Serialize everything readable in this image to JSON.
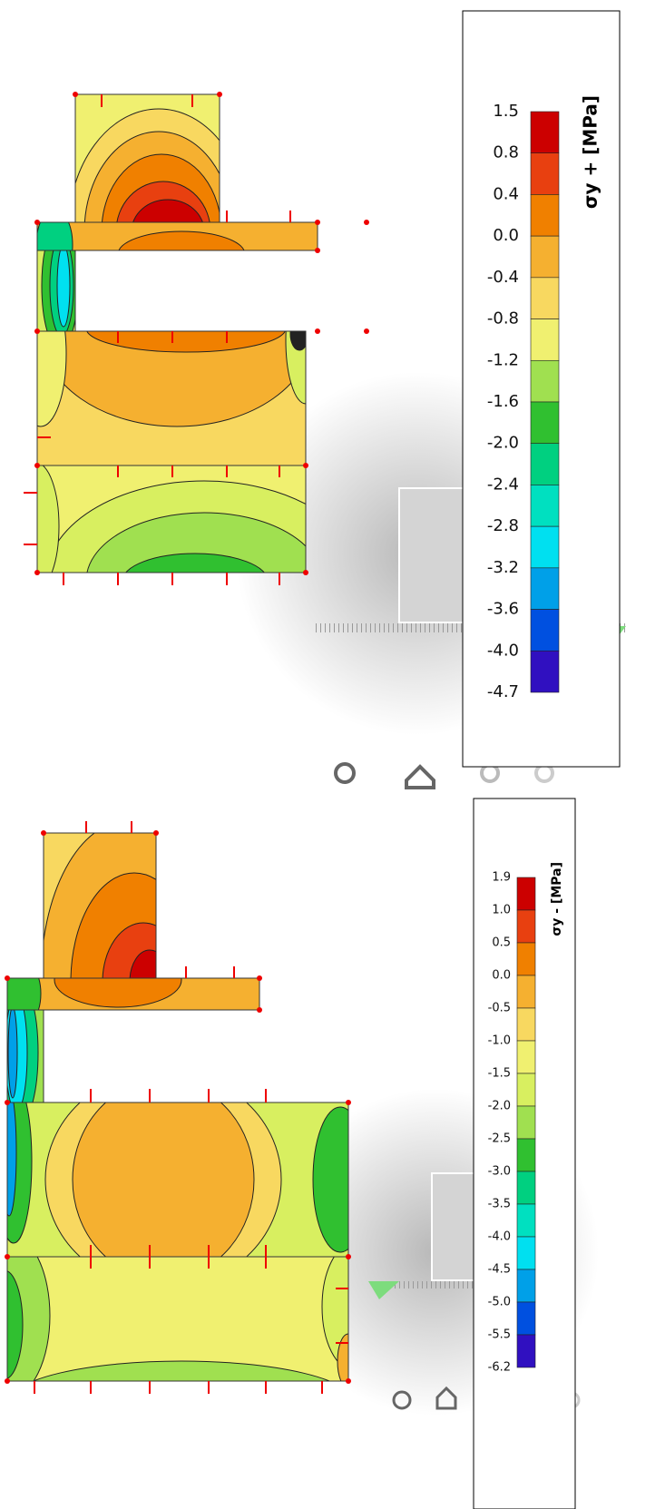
{
  "panels": [
    {
      "legend": {
        "title": "σy + [MPa]",
        "labels": [
          "1.5",
          "0.8",
          "0.4",
          "0.0",
          "-0.4",
          "-0.8",
          "-1.2",
          "-1.6",
          "-2.0",
          "-2.4",
          "-2.8",
          "-3.2",
          "-3.6",
          "-4.0",
          "-4.7"
        ],
        "colors": [
          "#cc0000",
          "#e84010",
          "#f08000",
          "#f5b030",
          "#f8d860",
          "#f0f070",
          "#a0e050",
          "#30c030",
          "#00d080",
          "#00e0c0",
          "#00e0f0",
          "#00a0e8",
          "#0050e0",
          "#3010c0"
        ]
      }
    },
    {
      "legend": {
        "title": "σy - [MPa]",
        "labels": [
          "1.9",
          "1.0",
          "0.5",
          "0.0",
          "-0.5",
          "-1.0",
          "-1.5",
          "-2.0",
          "-2.5",
          "-3.0",
          "-3.5",
          "-4.0",
          "-4.5",
          "-5.0",
          "-5.5",
          "-6.2"
        ],
        "colors": [
          "#cc0000",
          "#e84010",
          "#f08000",
          "#f5b030",
          "#f8d860",
          "#f0f070",
          "#d8ef60",
          "#a0e050",
          "#30c030",
          "#00d080",
          "#00e0c0",
          "#00e0f0",
          "#00a0e8",
          "#0050e0",
          "#3010c0"
        ]
      }
    }
  ]
}
